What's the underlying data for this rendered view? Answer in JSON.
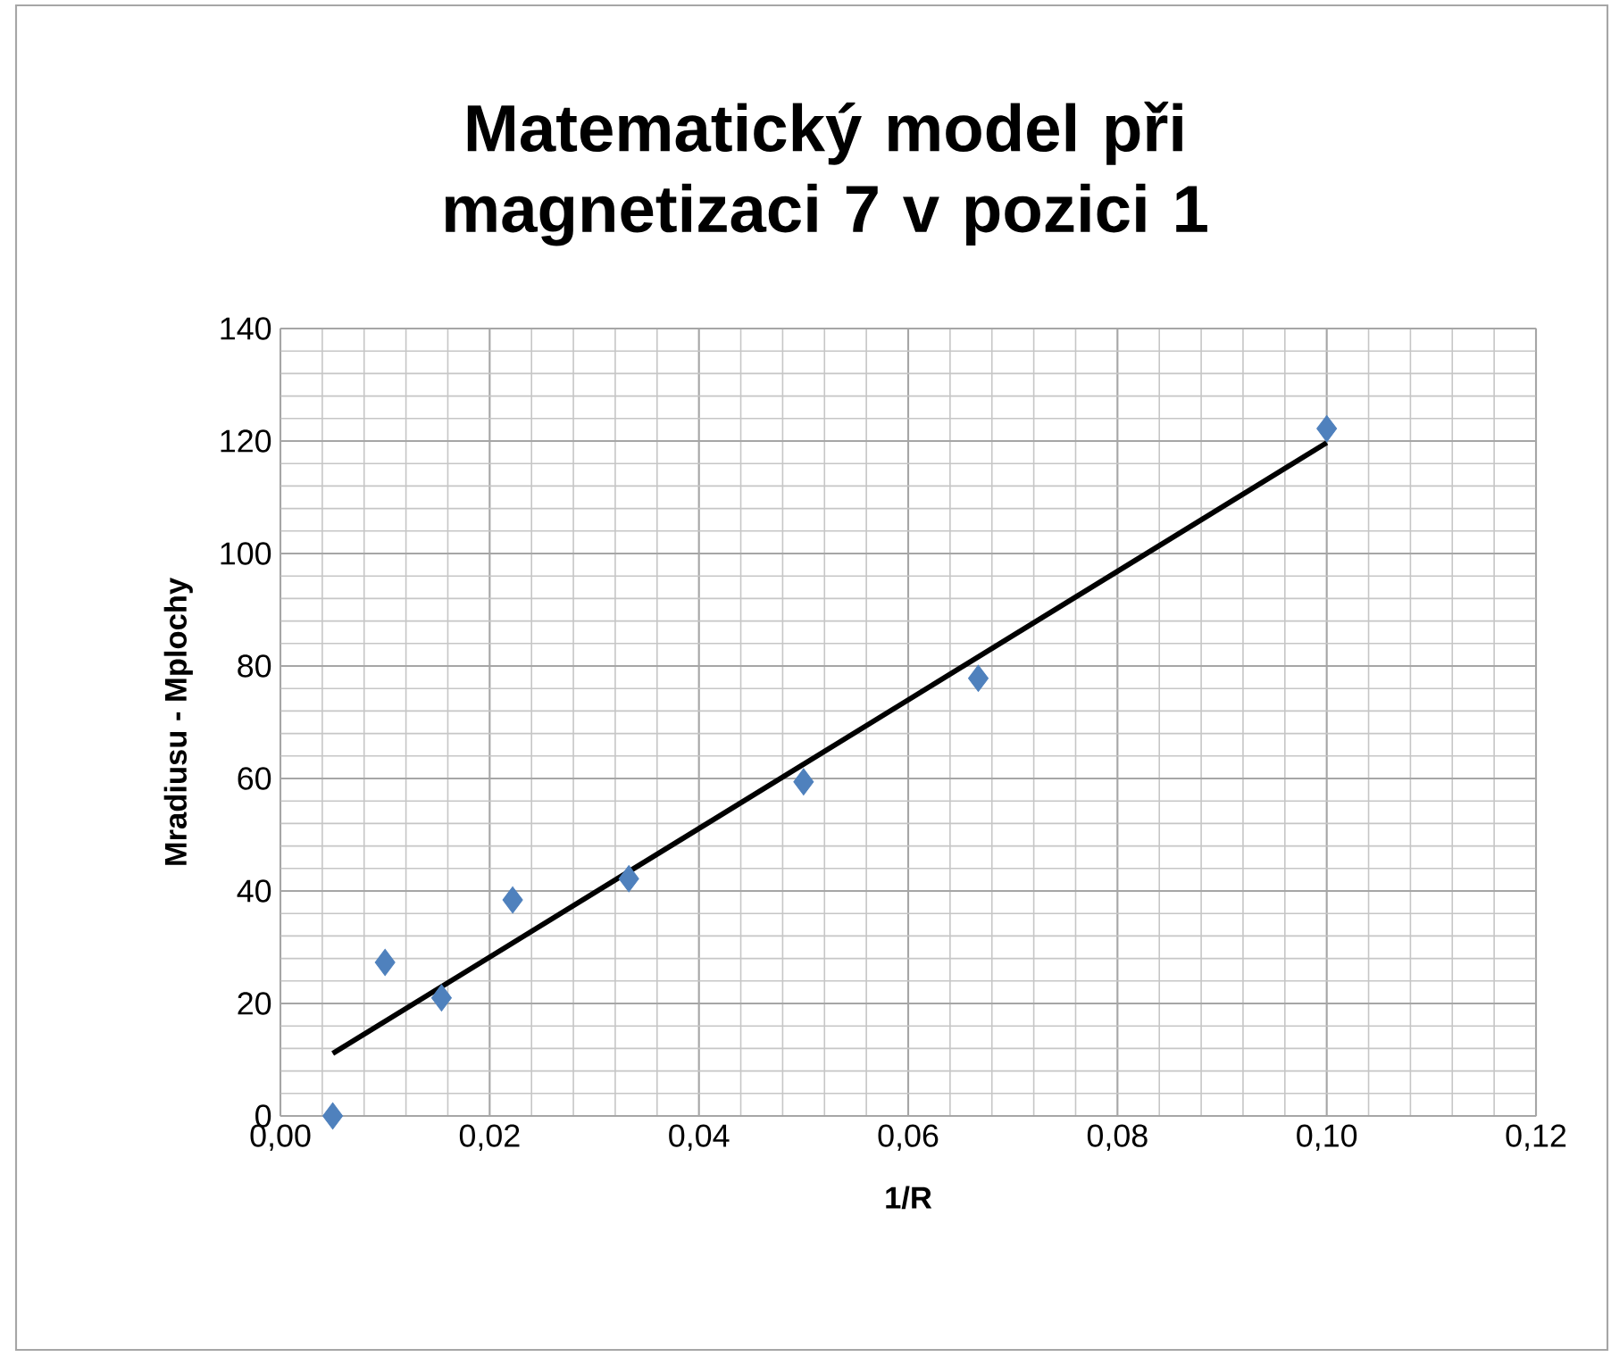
{
  "chart_data": {
    "type": "scatter",
    "title": "Matematický model při magnetizaci 7 v pozici 1",
    "xlabel": "1/R",
    "ylabel": "Mradiusu - Mplochy",
    "series": [
      {
        "color": "#4f81bd",
        "marker": "diamond",
        "x": [
          0.005,
          0.01,
          0.0154,
          0.0222,
          0.0333,
          0.05,
          0.0667,
          0.1
        ],
        "values": [
          0,
          27.3,
          21,
          38.4,
          42.2,
          59.4,
          77.8,
          122.2
        ]
      },
      {
        "type": "line",
        "color": "#000000",
        "marker": "none",
        "x": [
          0.005,
          0.1
        ],
        "values": [
          11.1,
          119.7
        ]
      }
    ],
    "xlim": [
      0,
      0.12
    ],
    "xticks": [
      {
        "value": 0,
        "label": "0,00"
      },
      {
        "value": 0.02,
        "label": "0,02"
      },
      {
        "value": 0.04,
        "label": "0,04"
      },
      {
        "value": 0.06,
        "label": "0,06"
      },
      {
        "value": 0.08,
        "label": "0,08"
      },
      {
        "value": 0.1,
        "label": "0,10"
      },
      {
        "value": 0.12,
        "label": "0,12"
      }
    ],
    "ylim": [
      0,
      140
    ],
    "yticks": [
      0,
      20,
      40,
      60,
      80,
      100,
      120,
      140
    ],
    "grid": true
  }
}
